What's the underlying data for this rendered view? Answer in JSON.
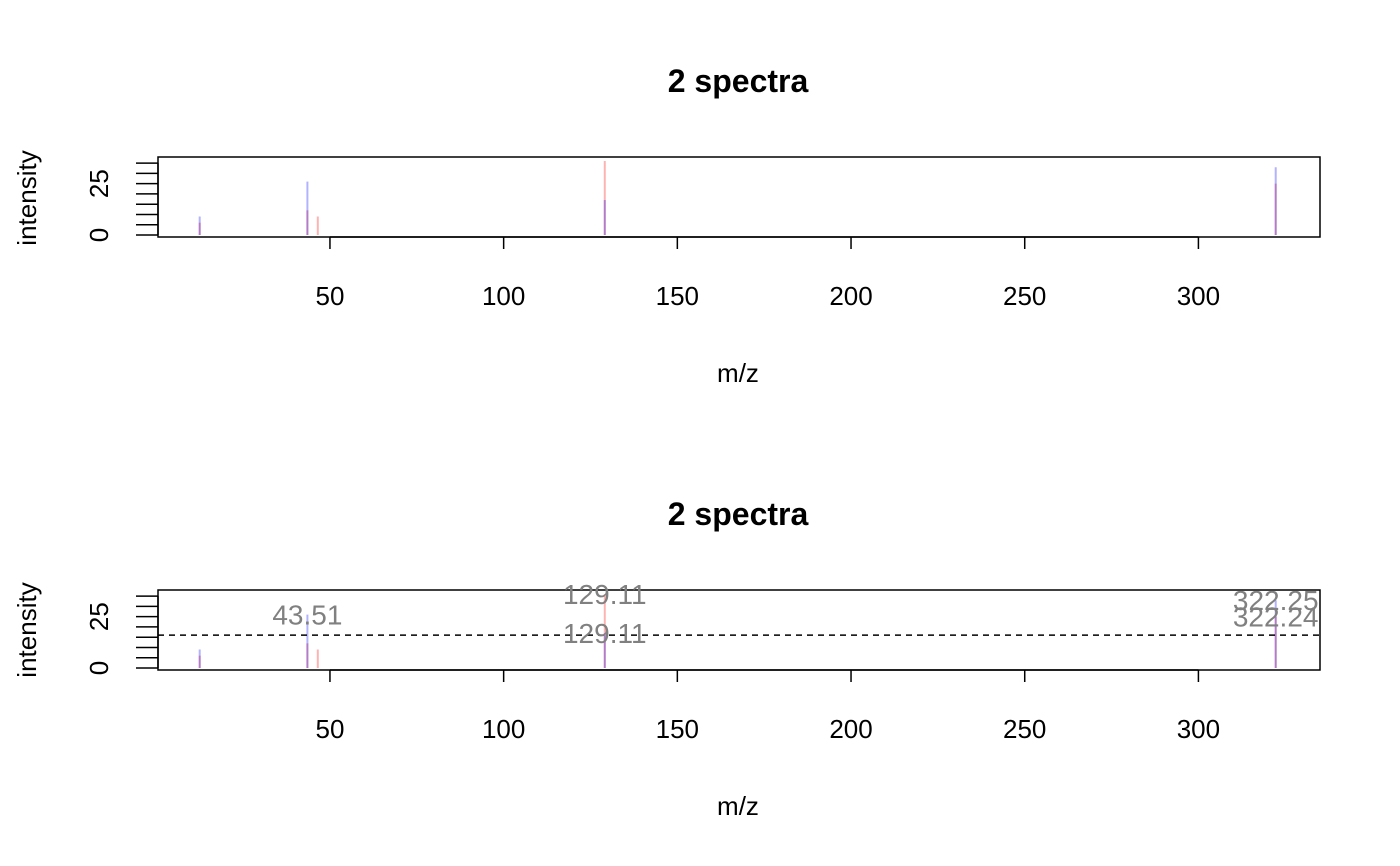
{
  "chart_data": [
    {
      "type": "line",
      "title": "2 spectra",
      "xlabel": "m/z",
      "ylabel": "intensity",
      "xlim": [
        0.5,
        335
      ],
      "ylim": [
        0,
        37
      ],
      "xticks": [
        50,
        100,
        150,
        200,
        250,
        300
      ],
      "yticks": [
        0,
        25
      ],
      "y_minor_ticks": [
        0,
        5,
        10,
        15,
        20,
        25,
        30,
        35
      ],
      "grid": false,
      "series": [
        {
          "color": "#FF00004D",
          "peaks": [
            {
              "mz": 12.5,
              "intensity": 6
            },
            {
              "mz": 43.51,
              "intensity": 12
            },
            {
              "mz": 46.5,
              "intensity": 9
            },
            {
              "mz": 129.11,
              "intensity": 36
            },
            {
              "mz": 322.24,
              "intensity": 25
            }
          ]
        },
        {
          "color": "#0000FF4D",
          "peaks": [
            {
              "mz": 12.5,
              "intensity": 9
            },
            {
              "mz": 43.51,
              "intensity": 26
            },
            {
              "mz": 129.11,
              "intensity": 17
            },
            {
              "mz": 322.25,
              "intensity": 33
            }
          ]
        }
      ],
      "threshold": null,
      "labels": []
    },
    {
      "type": "line",
      "title": "2 spectra",
      "xlabel": "m/z",
      "ylabel": "intensity",
      "xlim": [
        0.5,
        335
      ],
      "ylim": [
        0,
        37
      ],
      "xticks": [
        50,
        100,
        150,
        200,
        250,
        300
      ],
      "yticks": [
        0,
        25
      ],
      "y_minor_ticks": [
        0,
        5,
        10,
        15,
        20,
        25,
        30,
        35
      ],
      "grid": false,
      "series": [
        {
          "color": "#FF00004D",
          "peaks": [
            {
              "mz": 12.5,
              "intensity": 6
            },
            {
              "mz": 43.51,
              "intensity": 12
            },
            {
              "mz": 46.5,
              "intensity": 9
            },
            {
              "mz": 129.11,
              "intensity": 36
            },
            {
              "mz": 322.24,
              "intensity": 25
            }
          ]
        },
        {
          "color": "#0000FF4D",
          "peaks": [
            {
              "mz": 12.5,
              "intensity": 9
            },
            {
              "mz": 43.51,
              "intensity": 26
            },
            {
              "mz": 129.11,
              "intensity": 17
            },
            {
              "mz": 322.25,
              "intensity": 33
            }
          ]
        }
      ],
      "threshold": 16,
      "labels": [
        {
          "text": "43.51",
          "mz": 43.51,
          "intensity": 26
        },
        {
          "text": "129.11",
          "mz": 129.11,
          "intensity": 36
        },
        {
          "text": "129.11",
          "mz": 129.11,
          "intensity": 17
        },
        {
          "text": "322.25",
          "mz": 322.25,
          "intensity": 33
        },
        {
          "text": "322.24",
          "mz": 322.24,
          "intensity": 25
        }
      ]
    }
  ]
}
